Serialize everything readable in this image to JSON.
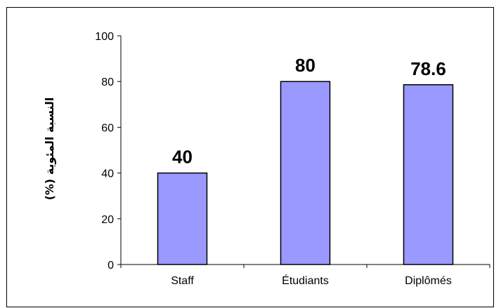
{
  "chart_data": {
    "type": "bar",
    "categories": [
      "Staff",
      "Étudiants",
      "Diplômés"
    ],
    "values": [
      40,
      80,
      78.6
    ],
    "data_labels": [
      "40",
      "80",
      "78.6"
    ],
    "title": "",
    "xlabel": "",
    "ylabel": "النسبة المئوية (%)",
    "ylim": [
      0,
      100
    ],
    "yticks": [
      0,
      20,
      40,
      60,
      80,
      100
    ],
    "ytick_labels": [
      "0",
      "20",
      "40",
      "60",
      "80",
      "100"
    ],
    "grid": false,
    "bar_color": "#9999ff",
    "bar_border_color": "#000000"
  }
}
